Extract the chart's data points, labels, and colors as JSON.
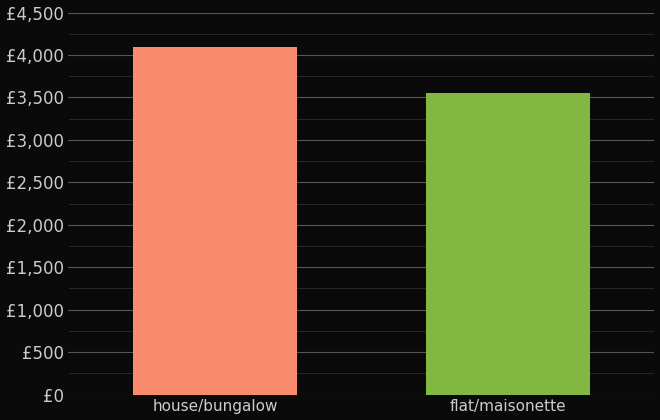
{
  "categories": [
    "house/bungalow",
    "flat/maisonette"
  ],
  "values": [
    4100,
    3550
  ],
  "bar_colors": [
    "#FA8B6C",
    "#82B842"
  ],
  "background_color": "#0a0a0a",
  "text_color": "#cccccc",
  "major_grid_color": "#555555",
  "minor_grid_color": "#333333",
  "ylim": [
    0,
    4500
  ],
  "yticks_major": [
    0,
    500,
    1000,
    1500,
    2000,
    2500,
    3000,
    3500,
    4000,
    4500
  ],
  "yticks_minor": [
    250,
    750,
    1250,
    1750,
    2250,
    2750,
    3250,
    3750,
    4250
  ],
  "tick_label_fontsize": 12,
  "xlabel_fontsize": 11,
  "bar_width": 0.28
}
